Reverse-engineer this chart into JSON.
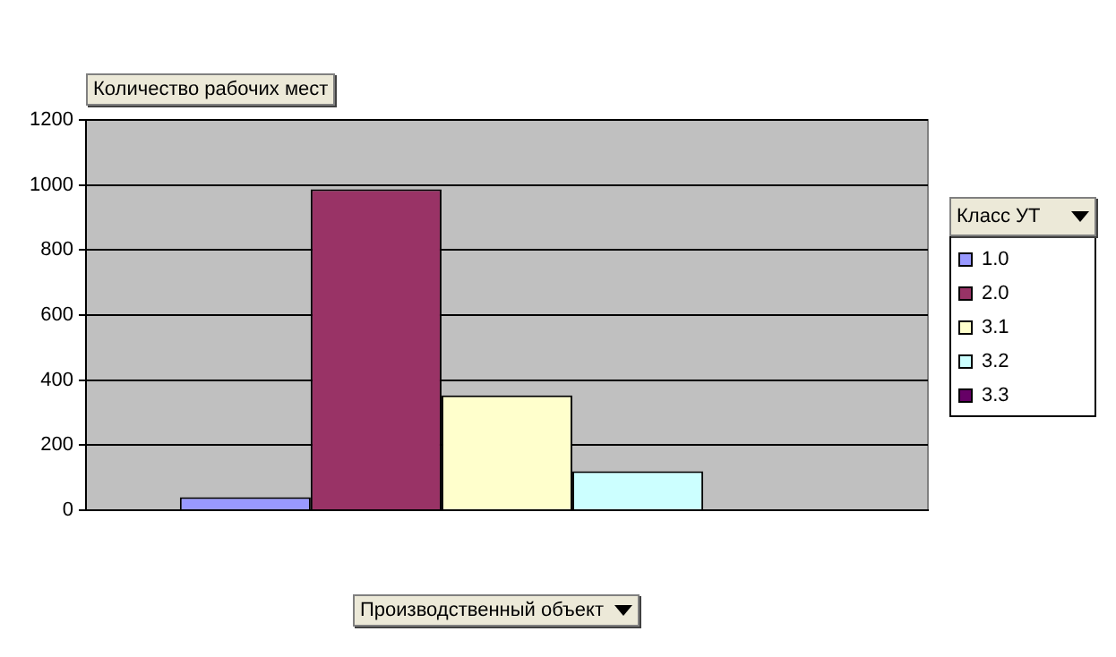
{
  "chart_data": {
    "type": "bar",
    "ylabel": "Количество рабочих мест",
    "xlabel": "Производственный объект",
    "legend_title": "Класс УТ",
    "categories": [
      null
    ],
    "series": [
      {
        "name": "1.0",
        "color": "#9999ff",
        "values": [
          40
        ]
      },
      {
        "name": "2.0",
        "color": "#993366",
        "values": [
          987
        ]
      },
      {
        "name": "3.1",
        "color": "#ffffcc",
        "values": [
          353
        ]
      },
      {
        "name": "3.2",
        "color": "#ccffff",
        "values": [
          120
        ]
      },
      {
        "name": "3.3",
        "color": "#660066",
        "values": [
          0
        ]
      }
    ],
    "ylim": [
      0,
      1200
    ],
    "yticks": [
      0,
      200,
      400,
      600,
      800,
      1000,
      1200
    ],
    "grid": "y",
    "legend": "right"
  }
}
